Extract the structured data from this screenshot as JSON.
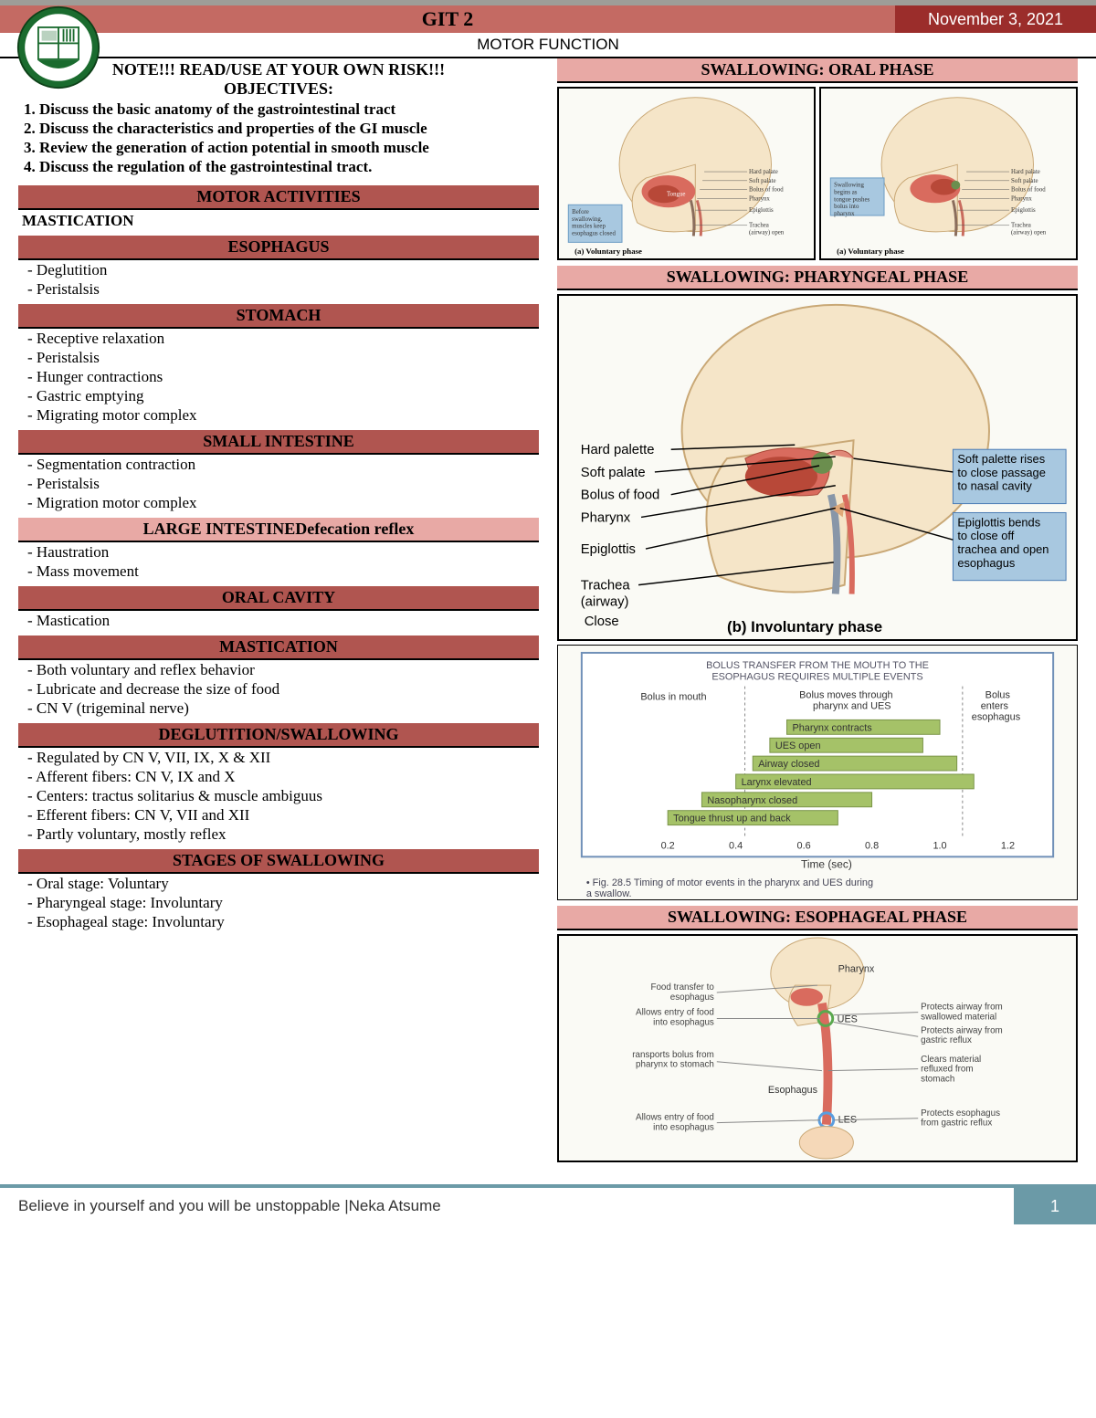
{
  "header": {
    "title": "GIT 2",
    "date": "November 3, 2021",
    "subtitle": "MOTOR FUNCTION"
  },
  "note": "NOTE!!! READ/USE AT YOUR OWN RISK!!!",
  "objectives_title": "OBJECTIVES:",
  "objectives": [
    "1. Discuss the basic anatomy of the gastrointestinal tract",
    "2. Discuss the characteristics and properties of the GI muscle",
    "3. Review the generation of action potential in smooth muscle",
    "4. Discuss the regulation of the gastrointestinal tract."
  ],
  "sections": {
    "motor_activities": {
      "title": "MOTOR ACTIVITIES",
      "sub": "MASTICATION"
    },
    "esophagus": {
      "title": "ESOPHAGUS",
      "items": [
        "- Deglutition",
        "- Peristalsis"
      ]
    },
    "stomach": {
      "title": "STOMACH",
      "items": [
        "- Receptive relaxation",
        "- Peristalsis",
        "- Hunger contractions",
        "- Gastric emptying",
        "- Migrating motor complex"
      ]
    },
    "small_intestine": {
      "title": "SMALL INTESTINE",
      "items": [
        "- Segmentation contraction",
        "- Peristalsis",
        "- Migration motor complex"
      ]
    },
    "large_intestine": {
      "title": "LARGE INTESTINEDefecation reflex",
      "items": [
        "- Haustration",
        "- Mass movement"
      ]
    },
    "oral_cavity": {
      "title": "ORAL CAVITY",
      "items": [
        "- Mastication"
      ]
    },
    "mastication": {
      "title": "MASTICATION",
      "items": [
        "- Both voluntary and reflex behavior",
        "- Lubricate and decrease the size of food",
        "- CN V (trigeminal nerve)"
      ]
    },
    "deglutition": {
      "title": "DEGLUTITION/SWALLOWING",
      "items": [
        "- Regulated by CN V, VII, IX, X & XII",
        "- Afferent fibers: CN V, IX and X",
        "- Centers: tractus solitarius & muscle ambiguus",
        "- Efferent fibers: CN V, VII and XII",
        "- Partly voluntary, mostly reflex"
      ]
    },
    "stages": {
      "title": "STAGES OF SWALLOWING",
      "items": [
        "- Oral stage: Voluntary",
        "- Pharyngeal stage: Involuntary",
        "- Esophageal stage: Involuntary"
      ]
    }
  },
  "right_headers": {
    "oral": "SWALLOWING: ORAL PHASE",
    "pharyngeal": "SWALLOWING: PHARYNGEAL PHASE",
    "esophageal": "SWALLOWING: ESOPHAGEAL PHASE"
  },
  "pharyngeal_diagram": {
    "left_labels": [
      "Hard palette",
      "Soft palate",
      "Bolus of food",
      "Pharynx",
      "Epiglottis",
      "Trachea",
      "(airway)",
      "Close"
    ],
    "right_boxes": [
      "Soft palette rises to close passage to nasal cavity",
      "Epiglottis bends to close off trachea and open esophagus"
    ],
    "caption": "(b) Involuntary phase"
  },
  "timing_chart": {
    "title": "BOLUS TRANSFER FROM THE MOUTH TO THE ESOPHAGUS REQUIRES MULTIPLE EVENTS",
    "col_headers": [
      "Bolus in mouth",
      "Bolus moves through pharynx and UES",
      "Bolus enters esophagus"
    ],
    "bars": [
      {
        "label": "Pharynx contracts",
        "start": 0.55,
        "end": 1.0,
        "color": "#a5c268"
      },
      {
        "label": "UES open",
        "start": 0.5,
        "end": 0.95,
        "color": "#a5c268"
      },
      {
        "label": "Airway closed",
        "start": 0.45,
        "end": 1.05,
        "color": "#a5c268"
      },
      {
        "label": "Larynx elevated",
        "start": 0.4,
        "end": 1.1,
        "color": "#a5c268"
      },
      {
        "label": "Nasopharynx closed",
        "start": 0.3,
        "end": 0.8,
        "color": "#a5c268"
      },
      {
        "label": "Tongue thrust up and back",
        "start": 0.2,
        "end": 0.7,
        "color": "#a5c268"
      }
    ],
    "xticks": [
      "0.2",
      "0.4",
      "0.6",
      "0.8",
      "1.0",
      "1.2"
    ],
    "xlabel": "Time (sec)",
    "caption": "• Fig. 28.5 Timing of motor events in the pharynx and UES during a swallow.",
    "bg_color": "#ffffff",
    "border_color": "#7090b8"
  },
  "oral_diagram": {
    "labels_right": [
      "Hard palate",
      "Soft palate",
      "Bolus of food",
      "Pharynx",
      "Epiglottis",
      "Trachea (airway) open"
    ],
    "box1": "Before swallowing, muscles keep esophagus closed",
    "box2": "Swallowing begins as tongue pushes bolus into pharynx",
    "caption": "(a) Voluntary phase"
  },
  "esophageal_diagram": {
    "left_labels": [
      "Food transfer to esophagus",
      "Allows entry of food into esophagus",
      "ransports bolus from pharynx to stomach",
      "Allows entry of food into esophagus"
    ],
    "right_labels": [
      "Protects airway from swallowed material",
      "Protects airway from gastric reflux",
      "Clears material refluxed from stomach",
      "Protects esophagus from gastric reflux"
    ],
    "anatomy": [
      "Pharynx",
      "UES",
      "Esophagus",
      "LES"
    ]
  },
  "footer": {
    "text": "Believe in yourself and you will be unstoppable |Neka Atsume",
    "page": "1"
  },
  "colors": {
    "header_red": "#c46a63",
    "header_darkred": "#9b2d2b",
    "section_red": "#b05550",
    "section_pink": "#e8a9a5",
    "footer_blue": "#6b9aa7",
    "logo_green": "#1a6b2e"
  }
}
